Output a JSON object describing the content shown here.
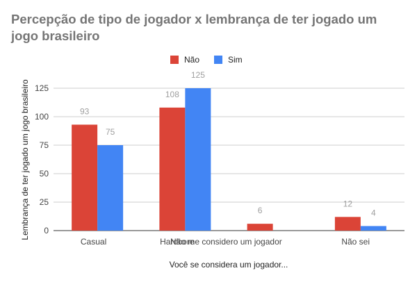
{
  "chart_data": {
    "type": "bar",
    "title": "Percepção de tipo de jogador x lembrança de ter jogado um jogo brasileiro",
    "xlabel": "Você se considera um jogador...",
    "ylabel": "Lembrança de ter jogado um jogo brasileiro",
    "categories": [
      "Casual",
      "Hardcore",
      "Não me considero um jogador",
      "Não sei"
    ],
    "series": [
      {
        "name": "Não",
        "color": "#db4437",
        "values": [
          93,
          108,
          6,
          12
        ]
      },
      {
        "name": "Sim",
        "color": "#4285f4",
        "values": [
          75,
          125,
          null,
          4
        ]
      }
    ],
    "ylim": [
      0,
      125
    ],
    "yticks": [
      0,
      25,
      50,
      75,
      100,
      125
    ],
    "legend_position": "top",
    "grid": true
  }
}
